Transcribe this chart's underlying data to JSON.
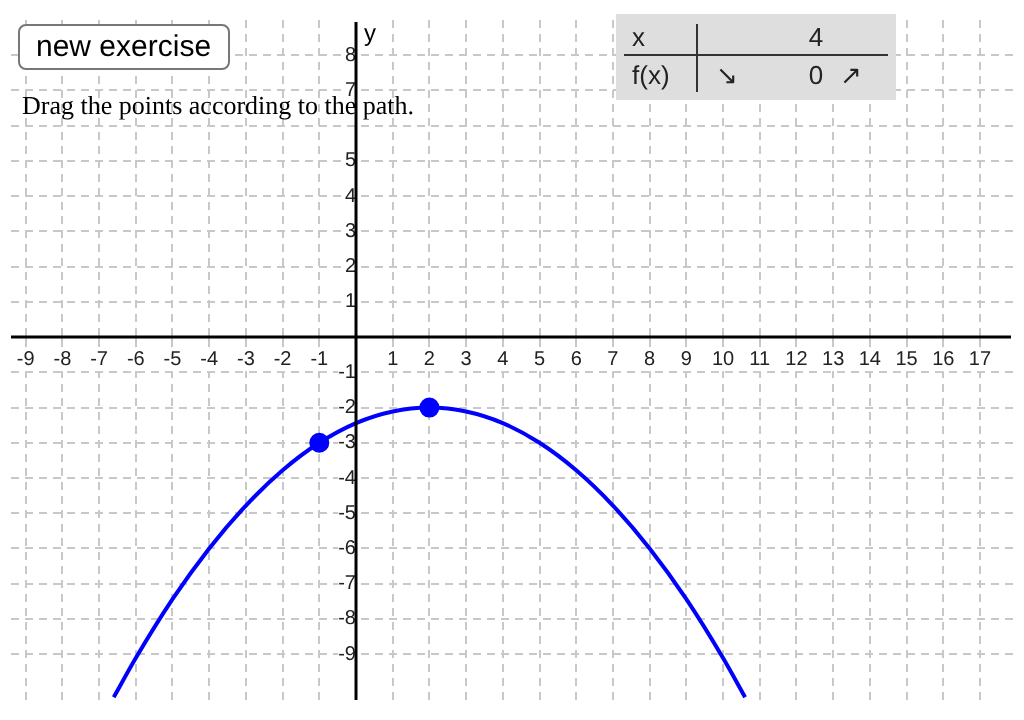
{
  "chart_data": {
    "type": "line",
    "ylabel": "y",
    "annotations": [
      "new exercise",
      "Drag the points according to the path.",
      "x",
      "4",
      "f(x)",
      "↘",
      "0",
      "↗"
    ],
    "xlim": [
      -9.4,
      17.9
    ],
    "ylim": [
      -10.3,
      9
    ],
    "xticks": [
      -9,
      -8,
      -7,
      -6,
      -5,
      -4,
      -3,
      -2,
      -1,
      1,
      2,
      3,
      4,
      5,
      6,
      7,
      8,
      9,
      10,
      11,
      12,
      13,
      14,
      15,
      16,
      17
    ],
    "yticks": [
      -9,
      -8,
      -7,
      -6,
      -5,
      -4,
      -3,
      -2,
      -1,
      1,
      2,
      3,
      4,
      5,
      {
        "value": 6,
        "label": null
      },
      7,
      8
    ],
    "grid": true,
    "legend": false,
    "series": [
      {
        "color": "#0000ff",
        "marker": "none",
        "x": [
          -6.6,
          -6,
          -5,
          -4,
          -3,
          -2,
          -1,
          0,
          1,
          2,
          3,
          4,
          5,
          6,
          7,
          8,
          9,
          10,
          10.6
        ],
        "values": [
          -10.22,
          -9.11,
          -7.44,
          -6,
          -4.78,
          -3.78,
          -3,
          -2.44,
          -2.11,
          -2,
          -2.11,
          -2.44,
          -3,
          -3.78,
          -4.78,
          -6,
          -7.44,
          -9.11,
          -10.22
        ]
      },
      {
        "type": "scatter",
        "color": "#0000ff",
        "marker": "circle",
        "x": [
          -1,
          2
        ],
        "values": [
          -3,
          -2
        ]
      }
    ]
  }
}
